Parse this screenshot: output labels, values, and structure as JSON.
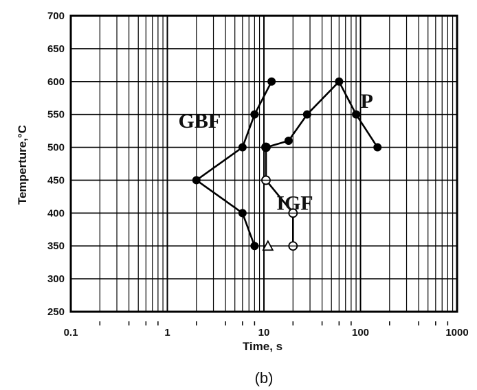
{
  "chart_data": {
    "type": "line",
    "xscale": "log",
    "xlim": [
      0.1,
      1000
    ],
    "ylim": [
      250,
      700
    ],
    "grid": true,
    "xlabel": "Time,  s",
    "ylabel": "Temperture,°C",
    "x_ticks": [
      "0.1",
      "1",
      "10",
      "100",
      "1000"
    ],
    "y_ticks": [
      "250",
      "300",
      "350",
      "400",
      "450",
      "500",
      "550",
      "600",
      "650",
      "700"
    ],
    "caption": "(b)",
    "series": [
      {
        "name": "GBF",
        "marker": "filled-circle",
        "points": [
          [
            12,
            600
          ],
          [
            8,
            550
          ],
          [
            6,
            500
          ],
          [
            2,
            450
          ],
          [
            6,
            400
          ],
          [
            8,
            350
          ]
        ]
      },
      {
        "name": "IGF",
        "marker": "open-circle",
        "points": [
          [
            10.5,
            500
          ],
          [
            10.5,
            450
          ],
          [
            20,
            400
          ],
          [
            20,
            350
          ]
        ]
      },
      {
        "name": "",
        "marker": "open-triangle",
        "points": [
          [
            11,
            350
          ]
        ]
      },
      {
        "name": "P",
        "marker": "filled-circle",
        "points": [
          [
            10.5,
            500
          ],
          [
            18,
            510
          ],
          [
            28,
            550
          ],
          [
            60,
            600
          ],
          [
            90,
            550
          ],
          [
            150,
            500
          ]
        ]
      }
    ]
  }
}
